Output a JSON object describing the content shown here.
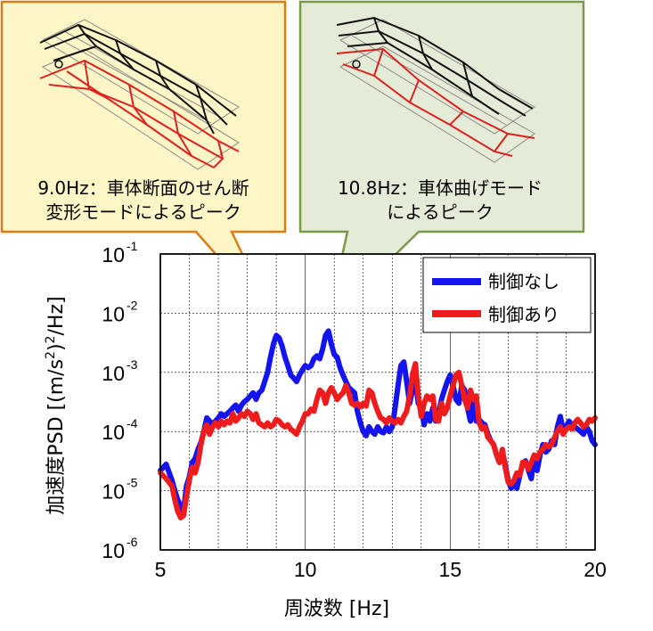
{
  "chart_data": {
    "type": "line",
    "xlabel": "周波数 [Hz]",
    "ylabel": "加速度PSD [(m/s²)²/Hz]",
    "ylabel_parts": {
      "main": "加速度PSD [(m/s",
      "sup": "2",
      "tail": ")",
      "sup2": "2",
      "end": "/Hz]"
    },
    "xlim": [
      5,
      20
    ],
    "ylim_exp": [
      -6,
      -1
    ],
    "yscale": "log",
    "grid": true,
    "legend_position": "top-right",
    "x_ticks": [
      "5",
      "10",
      "15",
      "20"
    ],
    "y_ticks": [
      {
        "base": "10",
        "exp": "-1"
      },
      {
        "base": "10",
        "exp": "-2"
      },
      {
        "base": "10",
        "exp": "-3"
      },
      {
        "base": "10",
        "exp": "-4"
      },
      {
        "base": "10",
        "exp": "-5"
      },
      {
        "base": "10",
        "exp": "-6"
      }
    ],
    "series": [
      {
        "name": "制御なし",
        "color": "#1414f0",
        "x": [
          5.0,
          5.2,
          5.4,
          5.5,
          5.6,
          5.7,
          5.8,
          5.9,
          6.0,
          6.1,
          6.2,
          6.3,
          6.4,
          6.5,
          6.6,
          6.7,
          6.8,
          6.9,
          7.0,
          7.1,
          7.2,
          7.3,
          7.4,
          7.5,
          7.6,
          7.7,
          7.8,
          7.9,
          8.0,
          8.1,
          8.2,
          8.3,
          8.4,
          8.5,
          8.6,
          8.7,
          8.8,
          8.9,
          9.0,
          9.1,
          9.2,
          9.3,
          9.4,
          9.5,
          9.6,
          9.7,
          9.8,
          9.9,
          10.0,
          10.1,
          10.2,
          10.3,
          10.4,
          10.5,
          10.6,
          10.7,
          10.8,
          10.9,
          11.0,
          11.1,
          11.2,
          11.3,
          11.4,
          11.5,
          11.6,
          11.7,
          11.8,
          11.9,
          12.0,
          12.1,
          12.2,
          12.3,
          12.4,
          12.5,
          12.6,
          12.7,
          12.8,
          12.9,
          13.0,
          13.1,
          13.2,
          13.3,
          13.4,
          13.5,
          13.6,
          13.7,
          13.8,
          13.9,
          14.0,
          14.1,
          14.2,
          14.3,
          14.4,
          14.5,
          14.6,
          14.7,
          14.8,
          14.9,
          15.0,
          15.1,
          15.2,
          15.3,
          15.4,
          15.5,
          15.6,
          15.7,
          15.8,
          15.9,
          16.0,
          16.1,
          16.2,
          16.3,
          16.4,
          16.5,
          16.6,
          16.7,
          16.8,
          16.9,
          17.0,
          17.1,
          17.2,
          17.3,
          17.4,
          17.5,
          17.6,
          17.7,
          17.8,
          17.9,
          18.0,
          18.1,
          18.2,
          18.3,
          18.4,
          18.5,
          18.6,
          18.7,
          18.8,
          18.9,
          19.0,
          19.1,
          19.2,
          19.3,
          19.4,
          19.5,
          19.6,
          19.7,
          19.8,
          19.9,
          20.0
        ],
        "y": [
          2.2e-05,
          2.8e-05,
          1.5e-05,
          1e-05,
          7e-06,
          5.5e-06,
          4.5e-06,
          1.2e-05,
          1.7e-05,
          3e-05,
          3.5e-05,
          5e-05,
          6.5e-05,
          0.0001,
          0.00017,
          0.00015,
          0.00013,
          0.00015,
          0.00017,
          0.0002,
          0.00018,
          0.0002,
          0.00022,
          0.00025,
          0.00028,
          0.00022,
          0.00028,
          0.00032,
          0.00035,
          0.0004,
          0.00045,
          0.00035,
          0.00045,
          0.0005,
          0.0007,
          0.001,
          0.0018,
          0.003,
          0.0042,
          0.0038,
          0.0028,
          0.0018,
          0.0013,
          0.0009,
          0.0008,
          0.0007,
          0.0009,
          0.0011,
          0.0013,
          0.0012,
          0.0013,
          0.0017,
          0.0019,
          0.0017,
          0.0025,
          0.0042,
          0.005,
          0.003,
          0.002,
          0.0018,
          0.0012,
          0.0009,
          0.0007,
          0.00055,
          0.0005,
          0.00045,
          0.00022,
          0.00014,
          0.0001,
          8.5e-05,
          0.00012,
          0.0001,
          9e-05,
          0.00012,
          0.0001,
          9.5e-05,
          0.00012,
          0.0001,
          0.00012,
          0.00025,
          0.0006,
          0.0013,
          0.0015,
          0.0007,
          0.0003,
          0.0005,
          0.0007,
          0.0003,
          0.00025,
          0.00013,
          0.0002,
          0.00015,
          0.00025,
          0.00015,
          0.0002,
          0.00035,
          0.0005,
          0.0007,
          0.0009,
          0.0006,
          0.00035,
          0.0003,
          0.0006,
          0.0005,
          0.00025,
          0.00015,
          0.0003,
          0.00015,
          0.00016,
          0.00014,
          0.00013,
          9e-05,
          7e-05,
          6e-05,
          4e-05,
          3e-05,
          4.5e-05,
          2.8e-05,
          1.5e-05,
          1.1e-05,
          1.3e-05,
          1.1e-05,
          1.8e-05,
          2.8e-05,
          3.2e-05,
          2.2e-05,
          1.6e-05,
          4e-05,
          2.2e-05,
          4e-05,
          6e-05,
          4.5e-05,
          5e-05,
          7e-05,
          6e-05,
          0.00012,
          0.00018,
          0.0001,
          0.00012,
          0.00015,
          0.00013,
          0.00012,
          0.00011,
          0.0001,
          9e-05,
          0.00012,
          0.0001,
          7e-05,
          6e-05
        ]
      },
      {
        "name": "制御あり",
        "color": "#ee1c1c",
        "x": [
          5.0,
          5.2,
          5.4,
          5.5,
          5.6,
          5.7,
          5.8,
          5.9,
          6.0,
          6.1,
          6.2,
          6.3,
          6.4,
          6.5,
          6.6,
          6.7,
          6.8,
          6.9,
          7.0,
          7.1,
          7.2,
          7.3,
          7.4,
          7.5,
          7.6,
          7.7,
          7.8,
          7.9,
          8.0,
          8.1,
          8.2,
          8.3,
          8.4,
          8.5,
          8.6,
          8.7,
          8.8,
          8.9,
          9.0,
          9.1,
          9.2,
          9.3,
          9.4,
          9.5,
          9.6,
          9.7,
          9.8,
          9.9,
          10.0,
          10.1,
          10.2,
          10.3,
          10.4,
          10.5,
          10.6,
          10.7,
          10.8,
          10.9,
          11.0,
          11.1,
          11.2,
          11.3,
          11.4,
          11.5,
          11.6,
          11.7,
          11.8,
          11.9,
          12.0,
          12.1,
          12.2,
          12.3,
          12.4,
          12.5,
          12.6,
          12.7,
          12.8,
          12.9,
          13.0,
          13.1,
          13.2,
          13.3,
          13.4,
          13.5,
          13.6,
          13.7,
          13.8,
          13.9,
          14.0,
          14.1,
          14.2,
          14.3,
          14.4,
          14.5,
          14.6,
          14.7,
          14.8,
          14.9,
          15.0,
          15.1,
          15.2,
          15.3,
          15.4,
          15.5,
          15.6,
          15.7,
          15.8,
          15.9,
          16.0,
          16.1,
          16.2,
          16.3,
          16.4,
          16.5,
          16.6,
          16.7,
          16.8,
          16.9,
          17.0,
          17.1,
          17.2,
          17.3,
          17.4,
          17.5,
          17.6,
          17.7,
          17.8,
          17.9,
          18.0,
          18.1,
          18.2,
          18.3,
          18.4,
          18.5,
          18.6,
          18.7,
          18.8,
          18.9,
          19.0,
          19.1,
          19.2,
          19.3,
          19.4,
          19.5,
          19.6,
          19.7,
          19.8,
          19.9,
          20.0
        ],
        "y": [
          2e-05,
          1.6e-05,
          1.2e-05,
          7e-06,
          4.5e-06,
          3.5e-06,
          3.8e-06,
          8e-06,
          1.5e-05,
          2.5e-05,
          2e-05,
          3e-05,
          6e-05,
          0.0001,
          0.00013,
          9e-05,
          0.00012,
          0.00014,
          0.00012,
          0.00015,
          0.00013,
          0.00015,
          0.00014,
          0.0002,
          0.00015,
          0.00017,
          0.0002,
          0.00018,
          0.00022,
          0.0002,
          0.00016,
          0.0002,
          0.00014,
          0.00013,
          0.00012,
          0.00014,
          0.00012,
          0.00013,
          0.00016,
          0.00015,
          0.00013,
          0.00012,
          0.00013,
          0.00011,
          0.0001,
          9e-05,
          0.00012,
          0.00015,
          0.0002,
          0.0002,
          0.00024,
          0.00022,
          0.00035,
          0.0005,
          0.00045,
          0.0003,
          0.00045,
          0.00055,
          0.00045,
          0.00035,
          0.0004,
          0.00045,
          0.0006,
          0.00045,
          0.0003,
          0.00028,
          0.0003,
          0.00026,
          0.0003,
          0.00027,
          0.0005,
          0.00045,
          0.0003,
          0.00022,
          0.00017,
          0.00016,
          0.00014,
          0.00017,
          0.00015,
          0.00014,
          0.00016,
          0.00014,
          0.00018,
          0.00022,
          0.0004,
          0.0009,
          0.0014,
          0.0004,
          0.00018,
          0.0003,
          0.0004,
          0.00035,
          0.0004,
          0.00016,
          0.00015,
          0.0003,
          0.0002,
          0.00025,
          0.0004,
          0.0006,
          0.0009,
          0.001,
          0.0006,
          0.00035,
          0.00025,
          0.0005,
          0.00035,
          0.0004,
          0.00014,
          0.00011,
          0.00012,
          8e-05,
          7e-05,
          6e-05,
          4e-05,
          3e-05,
          5e-05,
          2.5e-05,
          1.4e-05,
          1.3e-05,
          1.5e-05,
          2e-05,
          1.8e-05,
          3e-05,
          3e-05,
          2.3e-05,
          3e-05,
          4e-05,
          3.5e-05,
          4.5e-05,
          5e-05,
          6e-05,
          5.5e-05,
          6e-05,
          8e-05,
          0.0001,
          0.00012,
          9e-05,
          0.00011,
          0.00012,
          0.00011,
          0.00014,
          0.00016,
          0.00014,
          0.00012,
          0.00013,
          0.00016,
          0.00015,
          0.00017
        ]
      }
    ],
    "callouts": [
      {
        "lines": [
          "9.0Hz：車体断面のせん断",
          "変形モードによるピーク"
        ],
        "fill": "#fff6c8",
        "stroke": "#e07b12",
        "points_to": {
          "x": 9.0
        }
      },
      {
        "lines": [
          "10.8Hz：車体曲げモード",
          "によるピーク"
        ],
        "fill": "#e4ebd6",
        "stroke": "#7a9a4a",
        "points_to": {
          "x": 10.8
        }
      }
    ]
  }
}
